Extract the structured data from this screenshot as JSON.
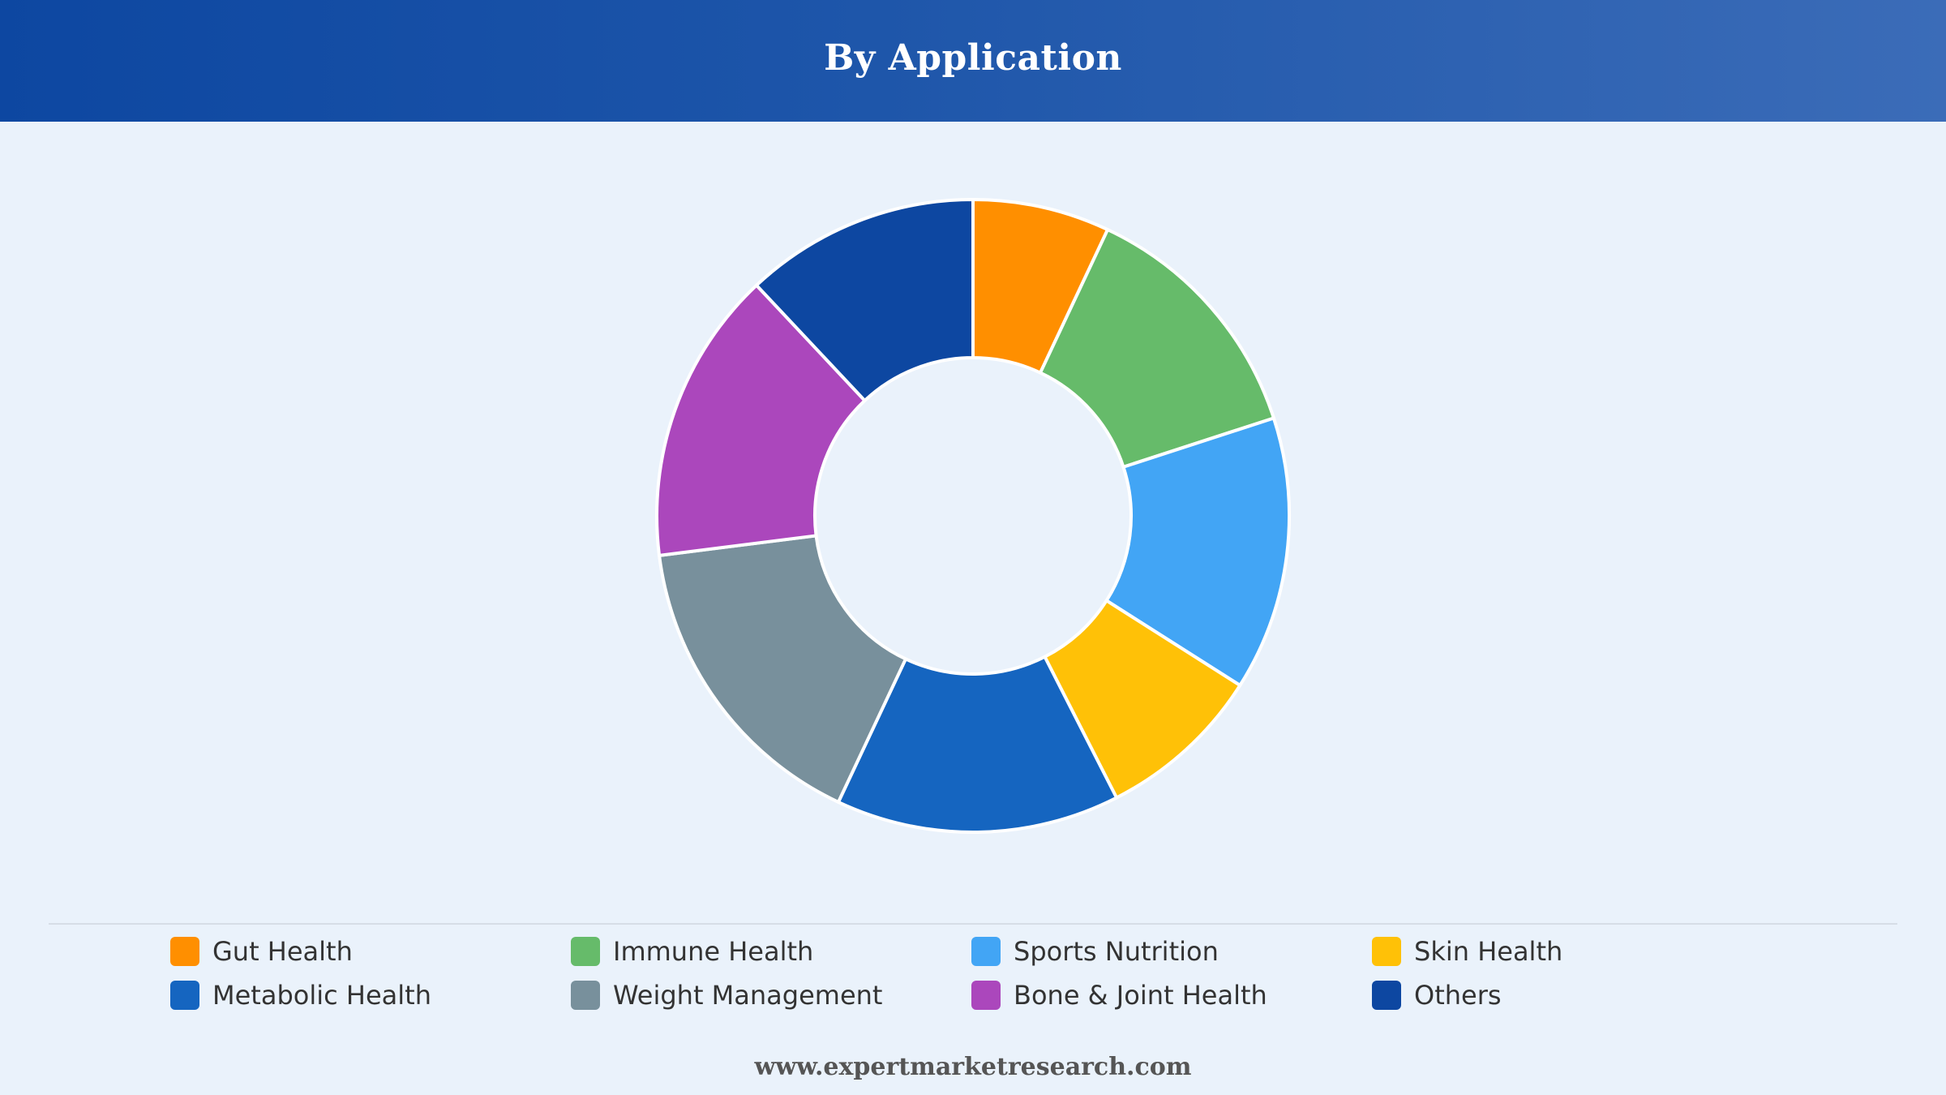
{
  "header": {
    "title": "By Application"
  },
  "chart_data": {
    "type": "pie",
    "donut": true,
    "title": "By Application",
    "legend_position": "bottom",
    "categories": [
      "Gut Health",
      "Immune Health",
      "Sports Nutrition",
      "Skin Health",
      "Metabolic Health",
      "Weight Management",
      "Bone & Joint Health",
      "Others"
    ],
    "values": [
      7,
      13,
      14,
      8.5,
      14.5,
      16,
      15,
      12
    ],
    "colors": [
      "#ff8f00",
      "#66bb6a",
      "#42a5f5",
      "#ffc107",
      "#1565c0",
      "#78909c",
      "#ab47bc",
      "#0d47a1"
    ]
  },
  "footer": {
    "text": "www.expertmarketresearch.com"
  }
}
